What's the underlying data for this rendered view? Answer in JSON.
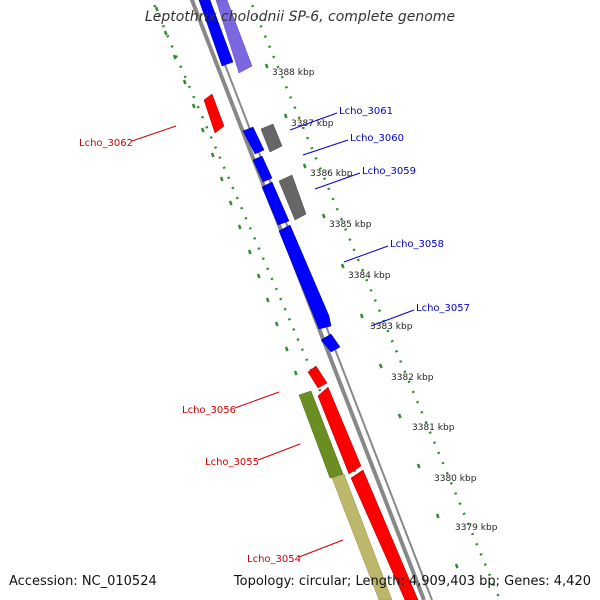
{
  "title": "Leptothrix cholodnii SP-6, complete genome",
  "accession": "Accession: NC_010524",
  "topology": "Topology: circular; Length: 4,909,403 bp; Genes: 4,420",
  "colors": {
    "forward_gene": "#0000ff",
    "forward_gene_light": "#7b68e0",
    "reverse_gene": "#ff0000",
    "other_gene": "#666666",
    "olive_gene": "#6b8e23",
    "khaki_gene": "#bdb76b",
    "tick_track": "#2e8b2e",
    "backbone": "#888888",
    "label_forward": "#0000cc",
    "label_reverse": "#cc0000"
  },
  "scale_labels": [
    "3388 kbp",
    "3387 kbp",
    "3386 kbp",
    "3385 kbp",
    "3384 kbp",
    "3383 kbp",
    "3382 kbp",
    "3381 kbp",
    "3380 kbp",
    "3379 kbp"
  ],
  "gene_labels": [
    {
      "name": "Lcho_3061",
      "strand": "forward"
    },
    {
      "name": "Lcho_3060",
      "strand": "forward"
    },
    {
      "name": "Lcho_3059",
      "strand": "forward"
    },
    {
      "name": "Lcho_3058",
      "strand": "forward"
    },
    {
      "name": "Lcho_3057",
      "strand": "forward"
    },
    {
      "name": "Lcho_3062",
      "strand": "reverse"
    },
    {
      "name": "Lcho_3056",
      "strand": "reverse"
    },
    {
      "name": "Lcho_3055",
      "strand": "reverse"
    },
    {
      "name": "Lcho_3054",
      "strand": "reverse"
    }
  ]
}
